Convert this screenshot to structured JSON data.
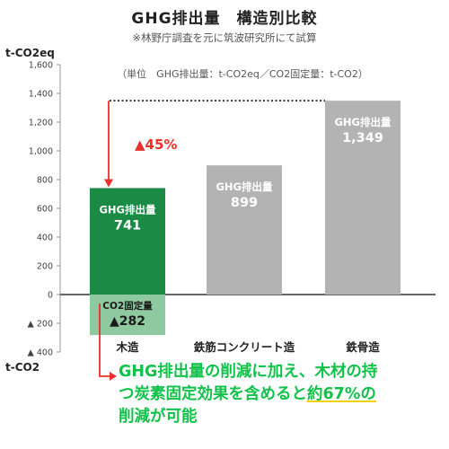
{
  "chart_data": {
    "type": "bar",
    "title": "GHG排出量　構造別比較",
    "notes": [
      "※林野庁調査を元に筑波研究所にて試算",
      "（単位　GHG排出量：t-CO2eq／CO2固定量：t-CO2）"
    ],
    "ylabel_top": "t-CO2eq",
    "ylabel_bottom": "t-CO2",
    "ylim": [
      -400,
      1600
    ],
    "yticks": [
      1600,
      1400,
      1200,
      1000,
      800,
      600,
      400,
      200,
      0,
      -200,
      -400
    ],
    "ytick_labels": [
      "1,600",
      "1,400",
      "1,200",
      "1,000",
      "800",
      "600",
      "400",
      "200",
      "0",
      "▲ 200",
      "▲ 400"
    ],
    "categories": [
      "木造",
      "鉄筋コンクリート造",
      "鉄骨造"
    ],
    "series": [
      {
        "name": "GHG排出量",
        "values": [
          741,
          899,
          1349
        ],
        "value_labels": [
          "741",
          "899",
          "1,349"
        ],
        "colors": [
          "#1a8a45",
          "#b3b3b3",
          "#b3b3b3"
        ]
      },
      {
        "name": "CO2固定量",
        "values": [
          -282,
          null,
          null
        ],
        "value_labels": [
          "▲282",
          "",
          ""
        ],
        "colors": [
          "#8fc9a0",
          "",
          ""
        ]
      }
    ],
    "annotations": {
      "reduction_label": "▲45%",
      "reference_value": 1349
    },
    "grid": false,
    "colors": {
      "arrow": "#e8312a",
      "conclusion": "#11c24a",
      "axis": "#333333"
    }
  },
  "conclusion": {
    "line1": "GHG排出量の削減に加え、木材の持",
    "line2_pre": "つ炭素固定効果を含めると",
    "line2_highlight": "約67%の",
    "line3": "削減が可能"
  }
}
